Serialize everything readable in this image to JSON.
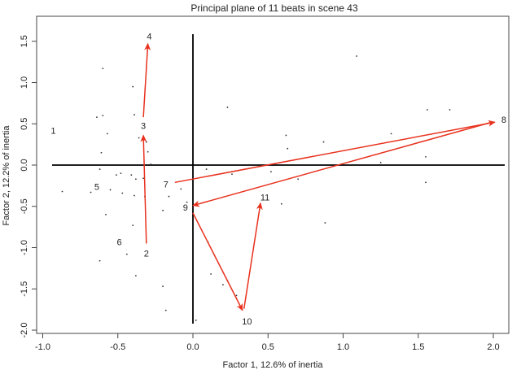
{
  "chart_data": {
    "type": "scatter",
    "title": "Principal plane of 11 beats in scene 43",
    "xlabel": "Factor 1, 12.6% of inertia",
    "ylabel": "Factor 2, 12.2% of inertia",
    "xlim": [
      -1.05,
      2.1
    ],
    "ylim": [
      -2.0,
      1.6
    ],
    "x_ticks": [
      "-1.0",
      "-0.5",
      "0.0",
      "0.5",
      "1.0",
      "1.5",
      "2.0"
    ],
    "y_ticks": [
      "-2.0",
      "-1.5",
      "-1.0",
      "-0.5",
      "0.0",
      "0.5",
      "1.0",
      "1.5"
    ],
    "beats": [
      {
        "label": "1",
        "x": -0.93,
        "y": 0.42
      },
      {
        "label": "2",
        "x": -0.31,
        "y": -1.07
      },
      {
        "label": "3",
        "x": -0.33,
        "y": 0.48
      },
      {
        "label": "4",
        "x": -0.29,
        "y": 1.56
      },
      {
        "label": "5",
        "x": -0.64,
        "y": -0.26
      },
      {
        "label": "6",
        "x": -0.49,
        "y": -0.93
      },
      {
        "label": "7",
        "x": -0.18,
        "y": -0.23
      },
      {
        "label": "8",
        "x": 2.07,
        "y": 0.55
      },
      {
        "label": "9",
        "x": -0.05,
        "y": -0.51
      },
      {
        "label": "10",
        "x": 0.36,
        "y": -1.89
      },
      {
        "label": "11",
        "x": 0.48,
        "y": -0.39
      }
    ],
    "arrows": [
      {
        "from": [
          -0.31,
          -0.95
        ],
        "to": [
          -0.33,
          0.36
        ]
      },
      {
        "from": [
          -0.33,
          0.58
        ],
        "to": [
          -0.3,
          1.47
        ]
      },
      {
        "from": [
          -0.12,
          -0.21
        ],
        "to": [
          2.01,
          0.52
        ]
      },
      {
        "from": [
          1.99,
          0.52
        ],
        "to": [
          0.0,
          -0.49
        ]
      },
      {
        "from": [
          0.0,
          -0.58
        ],
        "to": [
          0.33,
          -1.76
        ]
      },
      {
        "from": [
          0.34,
          -1.74
        ],
        "to": [
          0.45,
          -0.46
        ]
      }
    ],
    "points": [
      [
        -0.6,
        1.17
      ],
      [
        -0.4,
        0.95
      ],
      [
        -0.64,
        0.58
      ],
      [
        -0.6,
        0.6
      ],
      [
        -0.39,
        0.61
      ],
      [
        -0.57,
        0.38
      ],
      [
        -0.36,
        0.33
      ],
      [
        -0.31,
        0.28
      ],
      [
        -0.3,
        0.16
      ],
      [
        -0.61,
        0.15
      ],
      [
        -0.28,
        0.01
      ],
      [
        -0.62,
        -0.05
      ],
      [
        -0.51,
        -0.12
      ],
      [
        -0.48,
        -0.1
      ],
      [
        -0.41,
        -0.12
      ],
      [
        -0.38,
        -0.17
      ],
      [
        -0.33,
        -0.16
      ],
      [
        -0.87,
        -0.32
      ],
      [
        -0.68,
        -0.33
      ],
      [
        -0.55,
        -0.3
      ],
      [
        -0.47,
        -0.34
      ],
      [
        -0.39,
        -0.37
      ],
      [
        -0.32,
        -0.38
      ],
      [
        -0.16,
        -0.38
      ],
      [
        -0.08,
        -0.29
      ],
      [
        -0.04,
        -0.45
      ],
      [
        -0.2,
        -0.55
      ],
      [
        -0.58,
        -0.6
      ],
      [
        -0.4,
        -0.73
      ],
      [
        -0.44,
        -1.08
      ],
      [
        -0.62,
        -1.16
      ],
      [
        -0.38,
        -1.34
      ],
      [
        0.23,
        0.7
      ],
      [
        0.62,
        0.36
      ],
      [
        0.63,
        0.2
      ],
      [
        0.87,
        0.28
      ],
      [
        1.09,
        1.32
      ],
      [
        1.32,
        0.38
      ],
      [
        1.56,
        0.67
      ],
      [
        1.71,
        0.67
      ],
      [
        1.55,
        0.1
      ],
      [
        1.25,
        0.03
      ],
      [
        1.55,
        -0.21
      ],
      [
        0.7,
        -0.17
      ],
      [
        0.52,
        -0.08
      ],
      [
        0.09,
        -0.05
      ],
      [
        0.26,
        -0.11
      ],
      [
        0.1,
        -0.93
      ],
      [
        0.12,
        -1.32
      ],
      [
        0.23,
        -1.4
      ],
      [
        0.2,
        -1.45
      ],
      [
        0.29,
        -1.58
      ],
      [
        0.88,
        -0.7
      ],
      [
        0.59,
        -0.47
      ],
      [
        -0.2,
        -1.47
      ],
      [
        -0.18,
        -1.76
      ],
      [
        0.02,
        -1.88
      ]
    ]
  }
}
